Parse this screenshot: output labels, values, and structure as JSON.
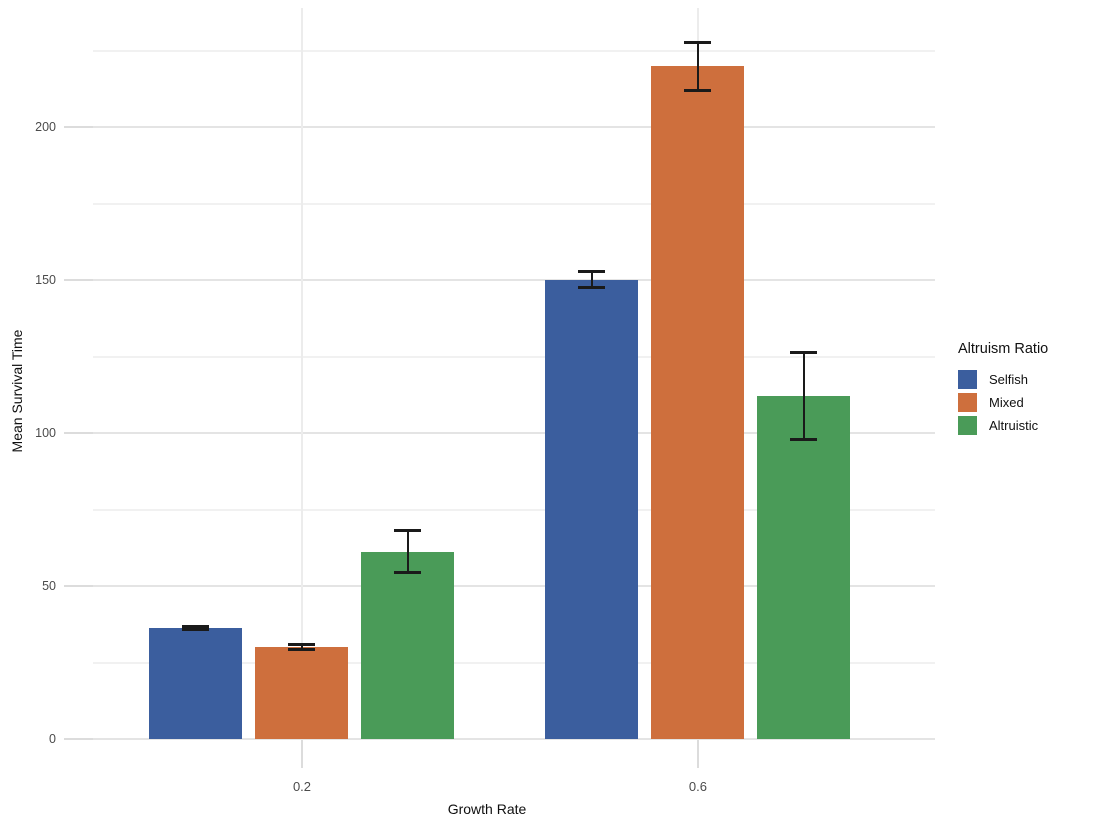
{
  "chart_data": {
    "type": "bar",
    "xlabel": "Growth Rate",
    "ylabel": "Mean Survival Time",
    "categories": [
      "0.2",
      "0.6"
    ],
    "series": [
      {
        "name": "Selfish",
        "color": "#3B5E9E",
        "values": [
          36.3,
          150.2
        ],
        "errors": [
          0.5,
          2.8
        ]
      },
      {
        "name": "Mixed",
        "color": "#CE6F3D",
        "values": [
          30.0,
          219.9
        ],
        "errors": [
          1.0,
          8.0
        ]
      },
      {
        "name": "Altruistic",
        "color": "#4A9B58",
        "values": [
          61.3,
          112.2
        ],
        "errors": [
          6.9,
          14.4
        ]
      }
    ],
    "ylim": [
      0,
      239
    ],
    "yticks": [
      0,
      50,
      100,
      150,
      200
    ],
    "minor_yticks": [
      25,
      75,
      125,
      175,
      225
    ],
    "grid": "horizontal major+minor, vertical at category centers",
    "error_bars": true,
    "legend": {
      "title": "Altruism Ratio",
      "position": "right"
    },
    "colors": {
      "background": "#ffffff",
      "grid_major": "#e4e4e4",
      "grid_minor": "#f1f1f1",
      "tick_mark": "#dcdcdc",
      "tick_label": "#4b4b4b",
      "axis_title": "#0f0f0f",
      "error_bar": "#1a1a1a"
    }
  }
}
